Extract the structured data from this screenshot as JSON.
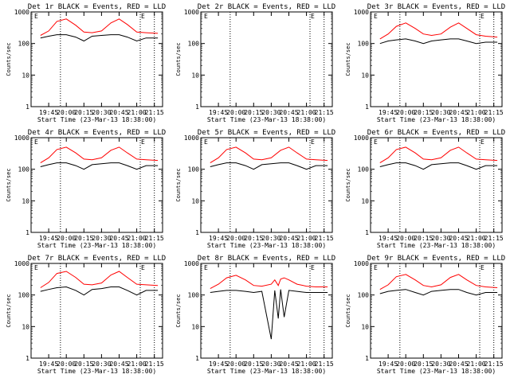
{
  "figure": {
    "start_time_label": "Start Time (23-Mar-13 18:38:00)",
    "ylabel": "Counts/sec",
    "x_ticks": [
      "19:45",
      "20:00",
      "20:15",
      "20:30",
      "20:45",
      "21:00",
      "21:15"
    ],
    "y_ticks": [
      "1",
      "10",
      "100",
      "1000"
    ],
    "series_colors": {
      "events": "#000000",
      "lld": "#ff0000"
    },
    "marker_letter": "E"
  },
  "chart_data": [
    {
      "type": "line",
      "title": "Det 1r BLACK = Events, RED = LLD",
      "xlabel": "Start Time (23-Mar-13 18:38:00)",
      "ylabel": "Counts/sec",
      "y_scale": "log",
      "ylim": [
        1,
        1000
      ],
      "x_ticks": [
        "19:45",
        "20:00",
        "20:15",
        "20:30",
        "20:45",
        "21:00",
        "21:15"
      ],
      "x": [
        "19:38",
        "19:45",
        "19:52",
        "20:00",
        "20:08",
        "20:15",
        "20:22",
        "20:30",
        "20:38",
        "20:45",
        "20:52",
        "21:00",
        "21:08",
        "21:18"
      ],
      "series": [
        {
          "values": [
            150,
            170,
            190,
            190,
            160,
            120,
            170,
            180,
            190,
            190,
            160,
            120,
            150,
            150
          ]
        },
        {
          "values": [
            180,
            250,
            500,
            600,
            380,
            230,
            220,
            250,
            450,
            600,
            400,
            230,
            220,
            210
          ]
        }
      ]
    },
    {
      "type": "line",
      "title": "Det 2r BLACK = Events, RED = LLD",
      "xlabel": "Start Time (23-Mar-13 18:38:00)",
      "ylabel": "Counts/sec",
      "y_scale": "log",
      "ylim": [
        1,
        1000
      ],
      "x_ticks": [
        "19:45",
        "20:00",
        "20:15",
        "20:30",
        "20:45",
        "21:00",
        "21:15"
      ],
      "x": [],
      "series": [
        {
          "values": []
        },
        {
          "values": []
        }
      ]
    },
    {
      "type": "line",
      "title": "Det 3r BLACK = Events, RED = LLD",
      "xlabel": "Start Time (23-Mar-13 18:38:00)",
      "ylabel": "Counts/sec",
      "y_scale": "log",
      "ylim": [
        1,
        1000
      ],
      "x_ticks": [
        "19:45",
        "20:00",
        "20:15",
        "20:30",
        "20:45",
        "21:00",
        "21:15"
      ],
      "x": [
        "19:38",
        "19:45",
        "19:52",
        "20:00",
        "20:08",
        "20:15",
        "20:22",
        "20:30",
        "20:38",
        "20:45",
        "20:52",
        "21:00",
        "21:08",
        "21:18"
      ],
      "series": [
        {
          "values": [
            100,
            120,
            130,
            140,
            120,
            100,
            120,
            130,
            140,
            140,
            120,
            100,
            110,
            110
          ]
        },
        {
          "values": [
            140,
            200,
            350,
            450,
            300,
            200,
            180,
            200,
            330,
            450,
            300,
            190,
            170,
            160
          ]
        }
      ]
    },
    {
      "type": "line",
      "title": "Det 4r BLACK = Events, RED = LLD",
      "xlabel": "Start Time (23-Mar-13 18:38:00)",
      "ylabel": "Counts/sec",
      "y_scale": "log",
      "ylim": [
        1,
        1000
      ],
      "x_ticks": [
        "19:45",
        "20:00",
        "20:15",
        "20:30",
        "20:45",
        "21:00",
        "21:15"
      ],
      "x": [
        "19:38",
        "19:45",
        "19:52",
        "20:00",
        "20:08",
        "20:15",
        "20:22",
        "20:30",
        "20:38",
        "20:45",
        "20:52",
        "21:00",
        "21:08",
        "21:18"
      ],
      "series": [
        {
          "values": [
            120,
            140,
            160,
            160,
            130,
            100,
            140,
            150,
            160,
            160,
            130,
            100,
            130,
            130
          ]
        },
        {
          "values": [
            160,
            230,
            420,
            500,
            330,
            210,
            200,
            230,
            400,
            500,
            330,
            210,
            200,
            190
          ]
        }
      ]
    },
    {
      "type": "line",
      "title": "Det 5r BLACK = Events, RED = LLD",
      "xlabel": "Start Time (23-Mar-13 18:38:00)",
      "ylabel": "Counts/sec",
      "y_scale": "log",
      "ylim": [
        1,
        1000
      ],
      "x_ticks": [
        "19:45",
        "20:00",
        "20:15",
        "20:30",
        "20:45",
        "21:00",
        "21:15"
      ],
      "x": [
        "19:38",
        "19:45",
        "19:52",
        "20:00",
        "20:08",
        "20:15",
        "20:22",
        "20:30",
        "20:38",
        "20:45",
        "20:52",
        "21:00",
        "21:08",
        "21:18"
      ],
      "series": [
        {
          "values": [
            120,
            140,
            160,
            160,
            130,
            100,
            140,
            150,
            160,
            160,
            130,
            100,
            130,
            130
          ]
        },
        {
          "values": [
            160,
            230,
            420,
            500,
            330,
            210,
            200,
            230,
            400,
            500,
            330,
            210,
            200,
            190
          ]
        }
      ]
    },
    {
      "type": "line",
      "title": "Det 6r BLACK = Events, RED = LLD",
      "xlabel": "Start Time (23-Mar-13 18:38:00)",
      "ylabel": "Counts/sec",
      "y_scale": "log",
      "ylim": [
        1,
        1000
      ],
      "x_ticks": [
        "19:45",
        "20:00",
        "20:15",
        "20:30",
        "20:45",
        "21:00",
        "21:15"
      ],
      "x": [
        "19:38",
        "19:45",
        "19:52",
        "20:00",
        "20:08",
        "20:15",
        "20:22",
        "20:30",
        "20:38",
        "20:45",
        "20:52",
        "21:00",
        "21:08",
        "21:18"
      ],
      "series": [
        {
          "values": [
            120,
            140,
            160,
            160,
            130,
            100,
            140,
            150,
            160,
            160,
            130,
            100,
            130,
            130
          ]
        },
        {
          "values": [
            160,
            230,
            420,
            500,
            330,
            210,
            200,
            230,
            400,
            500,
            330,
            210,
            200,
            190
          ]
        }
      ]
    },
    {
      "type": "line",
      "title": "Det 7r BLACK = Events, RED = LLD",
      "xlabel": "Start Time (23-Mar-13 18:38:00)",
      "ylabel": "Counts/sec",
      "y_scale": "log",
      "ylim": [
        1,
        1000
      ],
      "x_ticks": [
        "19:45",
        "20:00",
        "20:15",
        "20:30",
        "20:45",
        "21:00",
        "21:15"
      ],
      "x": [
        "19:38",
        "19:45",
        "19:52",
        "20:00",
        "20:08",
        "20:15",
        "20:22",
        "20:30",
        "20:38",
        "20:45",
        "20:52",
        "21:00",
        "21:08",
        "21:18"
      ],
      "series": [
        {
          "values": [
            130,
            150,
            170,
            180,
            140,
            100,
            150,
            160,
            180,
            180,
            140,
            100,
            140,
            140
          ]
        },
        {
          "values": [
            170,
            250,
            480,
            560,
            360,
            220,
            210,
            240,
            430,
            560,
            360,
            220,
            210,
            200
          ]
        }
      ]
    },
    {
      "type": "line",
      "title": "Det 8r BLACK = Events, RED = LLD",
      "xlabel": "Start Time (23-Mar-13 18:38:00)",
      "ylabel": "Counts/sec",
      "y_scale": "log",
      "ylim": [
        1,
        1000
      ],
      "x_ticks": [
        "19:45",
        "20:00",
        "20:15",
        "20:30",
        "20:45",
        "21:00",
        "21:15"
      ],
      "x": [
        "19:38",
        "19:45",
        "19:52",
        "20:00",
        "20:08",
        "20:15",
        "20:22",
        "20:30",
        "20:33",
        "20:36",
        "20:38",
        "20:41",
        "20:45",
        "20:52",
        "21:00",
        "21:08",
        "21:18"
      ],
      "series": [
        {
          "values": [
            120,
            130,
            140,
            140,
            130,
            120,
            130,
            4,
            140,
            18,
            150,
            20,
            140,
            130,
            120,
            120,
            120
          ]
        },
        {
          "values": [
            160,
            220,
            350,
            420,
            300,
            200,
            190,
            220,
            300,
            200,
            320,
            350,
            300,
            220,
            190,
            180,
            180
          ]
        }
      ]
    },
    {
      "type": "line",
      "title": "Det 9r BLACK = Events, RED = LLD",
      "xlabel": "Start Time (23-Mar-13 18:38:00)",
      "ylabel": "Counts/sec",
      "y_scale": "log",
      "ylim": [
        1,
        1000
      ],
      "x_ticks": [
        "19:45",
        "20:00",
        "20:15",
        "20:30",
        "20:45",
        "21:00",
        "21:15"
      ],
      "x": [
        "19:38",
        "19:45",
        "19:52",
        "20:00",
        "20:08",
        "20:15",
        "20:22",
        "20:30",
        "20:38",
        "20:45",
        "20:52",
        "21:00",
        "21:08",
        "21:18"
      ],
      "series": [
        {
          "values": [
            110,
            130,
            140,
            150,
            120,
            100,
            130,
            140,
            150,
            150,
            120,
            100,
            120,
            120
          ]
        },
        {
          "values": [
            150,
            210,
            380,
            450,
            300,
            200,
            180,
            210,
            360,
            450,
            300,
            200,
            180,
            170
          ]
        }
      ]
    }
  ]
}
